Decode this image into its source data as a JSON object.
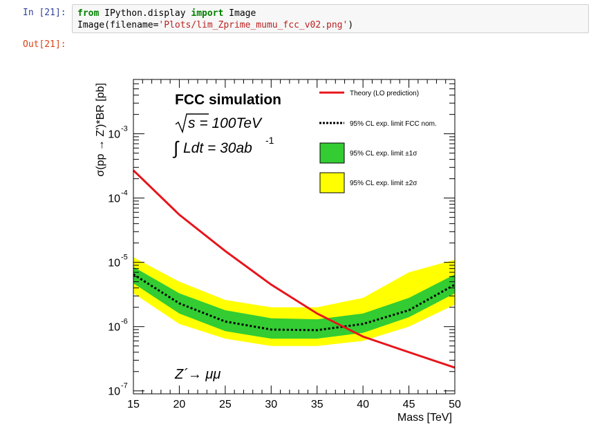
{
  "cell": {
    "in_prompt": "In [21]:",
    "out_prompt": "Out[21]:",
    "code": {
      "line1_kw1": "from",
      "line1_mod": " IPython.display ",
      "line1_kw2": "import",
      "line1_name": " Image",
      "line2_pre": "Image(filename=",
      "line2_str": "'Plots/lim_Zprime_mumu_fcc_v02.png'",
      "line2_post": ")"
    }
  },
  "chart_data": {
    "type": "line",
    "xlabel": "Mass [TeV]",
    "ylabel": "σ(pp → Z')*BR [pb]",
    "xlim": [
      15,
      50
    ],
    "ylim": [
      9e-08,
      0.007
    ],
    "ylog": true,
    "x_ticks": [
      "15",
      "20",
      "25",
      "30",
      "35",
      "40",
      "45",
      "50"
    ],
    "y_ticks": [
      {
        "base": "10",
        "exp": "-7"
      },
      {
        "base": "10",
        "exp": "-6"
      },
      {
        "base": "10",
        "exp": "-5"
      },
      {
        "base": "10",
        "exp": "-4"
      },
      {
        "base": "10",
        "exp": "-3"
      }
    ],
    "title": "FCC simulation",
    "energy_label": "s = 100TeV",
    "lumi_label": "Ldt = 30ab",
    "lumi_exp": "-1",
    "process_label": "Z´→ μμ",
    "legend_position": "top-right",
    "series": [
      {
        "name": "Theory (LO prediction)",
        "color": "#e8141a",
        "x": [
          15,
          20,
          25,
          30,
          35,
          40,
          45,
          50
        ],
        "y": [
          0.00027,
          5.5e-05,
          1.5e-05,
          4.5e-06,
          1.6e-06,
          7e-07,
          4e-07,
          2.3e-07
        ]
      },
      {
        "name": "95% CL exp. limit FCC nom.",
        "color": "#000000",
        "x": [
          15,
          20,
          25,
          30,
          35,
          40,
          45,
          50
        ],
        "y": [
          6.5e-06,
          2.3e-06,
          1.2e-06,
          9e-07,
          8.8e-07,
          1.1e-06,
          1.8e-06,
          4.5e-06
        ]
      },
      {
        "name": "95% CL exp. limit ±1σ",
        "color": "#33cc33",
        "x": [
          15,
          20,
          25,
          30,
          35,
          40,
          45,
          50
        ],
        "low": [
          4.7e-06,
          1.6e-06,
          8.5e-07,
          6.5e-07,
          6.5e-07,
          8e-07,
          1.4e-06,
          3.3e-06
        ],
        "high": [
          8.5e-06,
          3.3e-06,
          1.8e-06,
          1.35e-06,
          1.3e-06,
          1.6e-06,
          2.8e-06,
          6.5e-06
        ]
      },
      {
        "name": "95% CL exp. limit ±2σ",
        "color": "#ffff00",
        "x": [
          15,
          20,
          25,
          30,
          35,
          40,
          45,
          50
        ],
        "low": [
          3.3e-06,
          1.1e-06,
          6.5e-07,
          5e-07,
          5e-07,
          6e-07,
          1e-06,
          2.2e-06
        ],
        "high": [
          1.2e-05,
          5e-06,
          2.6e-06,
          2e-06,
          2e-06,
          2.8e-06,
          7e-06,
          1.1e-05
        ]
      }
    ]
  }
}
